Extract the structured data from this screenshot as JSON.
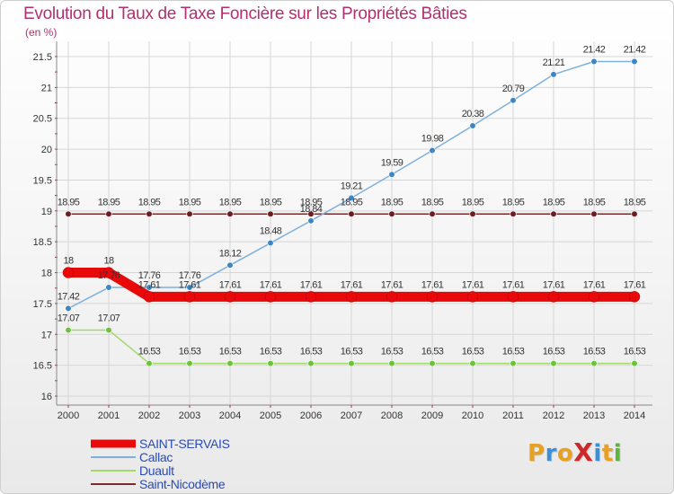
{
  "title": "Evolution du Taux de Taxe Foncière sur les Propriétés Bâties",
  "unit_label": "(en %)",
  "brand": {
    "text": "ProXiti",
    "letters": [
      "P",
      "r",
      "o",
      "X",
      "i",
      "t",
      "i"
    ],
    "colors": [
      "#e8a021",
      "#3b8fd9",
      "#e8a021",
      "#cc2a2a",
      "#3b8fd9",
      "#e8a021",
      "#5db53c"
    ]
  },
  "chart_data": {
    "type": "line",
    "title": "Evolution du Taux de Taxe Foncière sur les Propriétés Bâties",
    "ylabel": "(en %)",
    "xlabel": "",
    "ylim": [
      16,
      21.5
    ],
    "y_ticks": [
      "16",
      "16.5",
      "17",
      "17.5",
      "18",
      "18.5",
      "19",
      "19.5",
      "20",
      "20.5",
      "21",
      "21.5"
    ],
    "categories": [
      "2000",
      "2001",
      "2002",
      "2003",
      "2004",
      "2005",
      "2006",
      "2007",
      "2008",
      "2009",
      "2010",
      "2011",
      "2012",
      "2013",
      "2014"
    ],
    "grid": true,
    "legend_position": "bottom-left",
    "series": [
      {
        "name": "SAINT-SERVAIS",
        "color": "#e8090b",
        "values": [
          18,
          18,
          17.61,
          17.61,
          17.61,
          17.61,
          17.61,
          17.61,
          17.61,
          17.61,
          17.61,
          17.61,
          17.61,
          17.61,
          17.61
        ]
      },
      {
        "name": "Callac",
        "color": "#7fb0dc",
        "values": [
          17.42,
          17.76,
          17.76,
          17.76,
          18.12,
          18.48,
          18.84,
          19.21,
          19.59,
          19.98,
          20.38,
          20.79,
          21.21,
          21.42,
          21.42
        ]
      },
      {
        "name": "Duault",
        "color": "#a2d86c",
        "values": [
          17.07,
          17.07,
          16.53,
          16.53,
          16.53,
          16.53,
          16.53,
          16.53,
          16.53,
          16.53,
          16.53,
          16.53,
          16.53,
          16.53,
          16.53
        ]
      },
      {
        "name": "Saint-Nicodème",
        "color": "#7a2a2e",
        "values": [
          18.95,
          18.95,
          18.95,
          18.95,
          18.95,
          18.95,
          18.95,
          18.95,
          18.95,
          18.95,
          18.95,
          18.95,
          18.95,
          18.95,
          18.95
        ]
      }
    ],
    "data_labels": [
      {
        "series": "Saint-Nicodème",
        "labels": [
          "18.95",
          "18.95",
          "18.95",
          "18.95",
          "18.95",
          "18.95",
          "18.95",
          "18.95",
          "18.95",
          "18.95",
          "18.95",
          "18.95",
          "18.95",
          "18.95",
          "18.95"
        ]
      },
      {
        "series": "Callac",
        "labels": [
          "17.42",
          "17.76",
          "17.76",
          "17.76",
          "18.12",
          "18.48",
          "18.84",
          "19.21",
          "19.59",
          "19.98",
          "20.38",
          "20.79",
          "21.21",
          "21.42",
          "21.42"
        ]
      },
      {
        "series": "SAINT-SERVAIS",
        "labels": [
          "18",
          "18",
          "17.61",
          "17.61",
          "17.61",
          "17.61",
          "17.61",
          "17.61",
          "17.61",
          "17.61",
          "17.61",
          "17.61",
          "17.61",
          "17.61",
          "17.61"
        ]
      },
      {
        "series": "Duault",
        "labels": [
          "17.07",
          "17.07",
          "16.53",
          "16.53",
          "16.53",
          "16.53",
          "16.53",
          "16.53",
          "16.53",
          "16.53",
          "16.53",
          "16.53",
          "16.53",
          "16.53",
          "16.53"
        ]
      }
    ]
  }
}
